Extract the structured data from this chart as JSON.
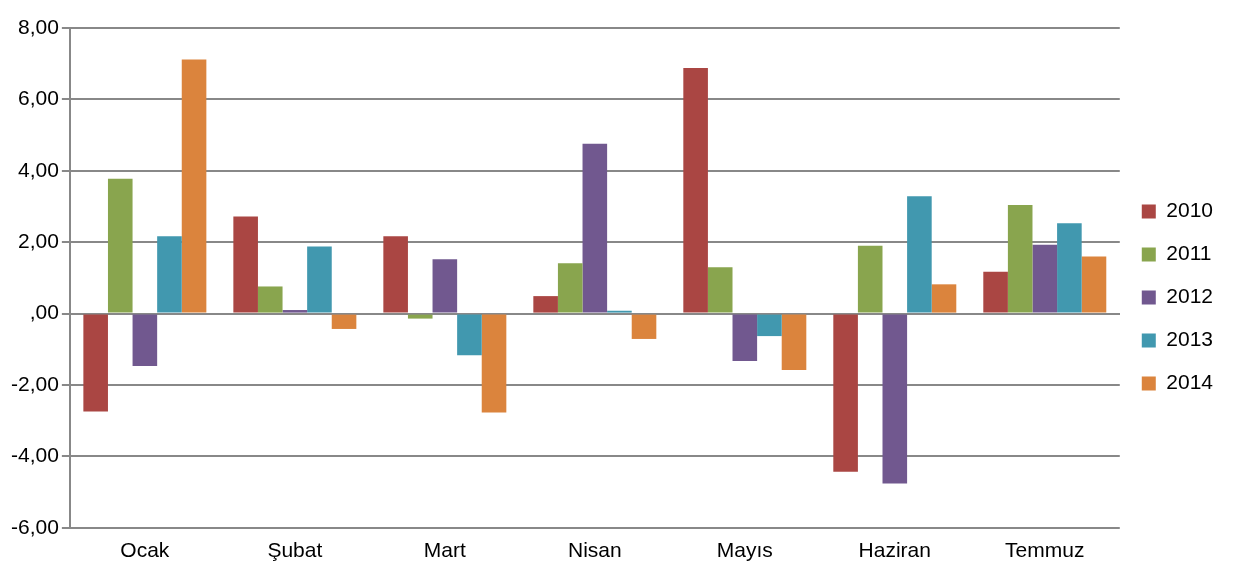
{
  "chart_data": {
    "type": "bar",
    "categories": [
      "Ocak",
      "Şubat",
      "Mart",
      "Nisan",
      "Mayıs",
      "Haziran",
      "Temmuz"
    ],
    "series": [
      {
        "name": "2010",
        "color": "#aa4643",
        "values": [
          -2.74,
          2.72,
          2.17,
          0.49,
          6.88,
          -4.43,
          1.17
        ]
      },
      {
        "name": "2011",
        "color": "#89a54e",
        "values": [
          3.78,
          0.76,
          -0.14,
          1.41,
          1.3,
          1.9,
          3.04
        ]
      },
      {
        "name": "2012",
        "color": "#71588f",
        "values": [
          -1.47,
          0.1,
          1.52,
          4.76,
          -1.33,
          -4.76,
          1.93
        ]
      },
      {
        "name": "2013",
        "color": "#4198af",
        "values": [
          2.17,
          1.88,
          -1.17,
          0.08,
          -0.63,
          3.29,
          2.53
        ]
      },
      {
        "name": "2014",
        "color": "#db843d",
        "values": [
          7.12,
          -0.43,
          -2.77,
          -0.71,
          -1.58,
          0.82,
          1.6
        ]
      }
    ],
    "ylim": [
      -6,
      8
    ],
    "yticks": [
      {
        "value": -6,
        "label": "-6,00"
      },
      {
        "value": -4,
        "label": "-4,00"
      },
      {
        "value": -2,
        "label": "-2,00"
      },
      {
        "value": 0,
        "label": ",00"
      },
      {
        "value": 2,
        "label": "2,00"
      },
      {
        "value": 4,
        "label": "4,00"
      },
      {
        "value": 6,
        "label": "6,00"
      },
      {
        "value": 8,
        "label": "8,00"
      }
    ],
    "grid": "y",
    "legend": "right"
  }
}
